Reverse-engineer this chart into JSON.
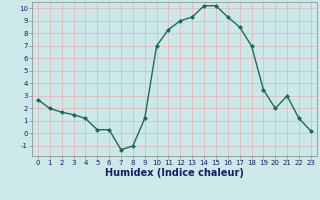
{
  "x": [
    0,
    1,
    2,
    3,
    4,
    5,
    6,
    7,
    8,
    9,
    10,
    11,
    12,
    13,
    14,
    15,
    16,
    17,
    18,
    19,
    20,
    21,
    22,
    23
  ],
  "y": [
    2.7,
    2.0,
    1.7,
    1.5,
    1.2,
    0.3,
    0.3,
    -1.3,
    -1.0,
    1.2,
    7.0,
    8.3,
    9.0,
    9.3,
    10.2,
    10.2,
    9.3,
    8.5,
    7.0,
    3.5,
    2.0,
    3.0,
    1.2,
    0.2
  ],
  "xlabel": "Humidex (Indice chaleur)",
  "ylim": [
    -1.8,
    10.5
  ],
  "xlim": [
    -0.5,
    23.5
  ],
  "yticks": [
    -1,
    0,
    1,
    2,
    3,
    4,
    5,
    6,
    7,
    8,
    9,
    10
  ],
  "xticks": [
    0,
    1,
    2,
    3,
    4,
    5,
    6,
    7,
    8,
    9,
    10,
    11,
    12,
    13,
    14,
    15,
    16,
    17,
    18,
    19,
    20,
    21,
    22,
    23
  ],
  "line_color": "#1a6b5a",
  "marker": "D",
  "marker_size": 2,
  "bg_color": "#cce8e8",
  "grid_color": "#e8b0b0",
  "xlabel_color": "#1a1a6b",
  "xlabel_fontsize": 7,
  "tick_fontsize": 5,
  "linewidth": 1.0
}
